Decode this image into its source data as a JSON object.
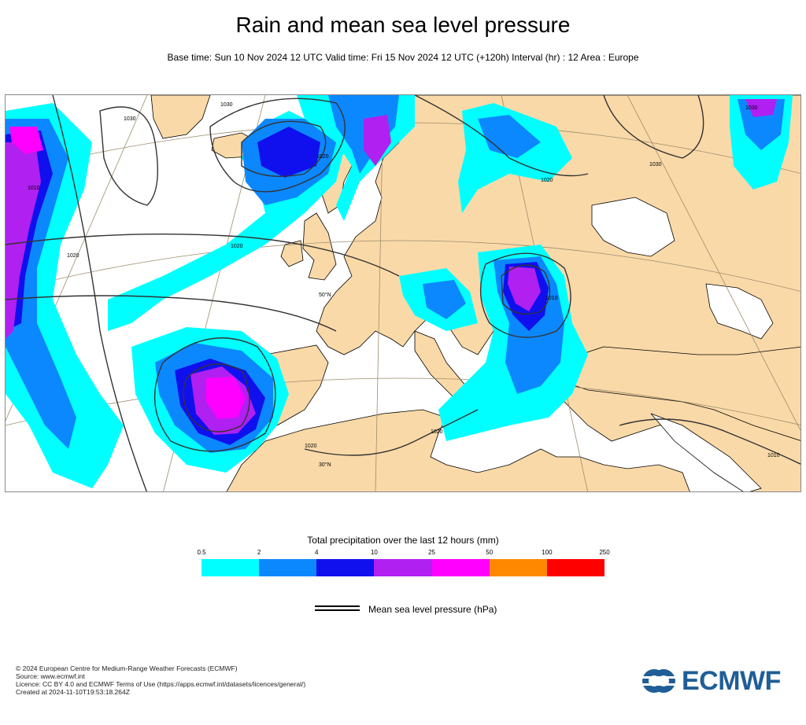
{
  "title": "Rain and mean sea level pressure",
  "subtitle": "Base time: Sun 10 Nov 2024 12 UTC Valid time: Fri 15 Nov 2024 12 UTC (+120h) Interval (hr) : 12 Area : Europe",
  "colorbar": {
    "title": "Total precipitation over the last 12 hours (mm)",
    "ticks": [
      "0.5",
      "2",
      "4",
      "10",
      "25",
      "50",
      "100",
      "250"
    ],
    "colors": [
      "#00ffff",
      "#0c88ff",
      "#1010ee",
      "#b020f0",
      "#ff00ff",
      "#ff8800",
      "#ff0000"
    ]
  },
  "legend": {
    "label": "Mean sea level pressure (hPa)"
  },
  "map": {
    "colors": {
      "land": "#fad9a8",
      "sea": "#ffffff",
      "coast": "#000000",
      "isobar": "#333333",
      "graticule": "#9c8c6c",
      "precip_light": "#00ffff",
      "precip_moderate": "#0c88ff",
      "precip_heavy": "#1010ee",
      "precip_very_heavy": "#b020f0",
      "precip_extreme": "#ff00ff"
    },
    "isobar_labels": [
      "1030",
      "1030",
      "1030",
      "1020",
      "1020",
      "1020",
      "1020",
      "1010",
      "1010",
      "1020",
      "1020",
      "1030",
      "1010"
    ],
    "graticule_labels": [
      "50°N",
      "30°N"
    ]
  },
  "footer": {
    "lines": [
      "© 2024 European Centre for Medium-Range Weather Forecasts (ECMWF)",
      "Source: www.ecmwf.int",
      "Licence: CC BY 4.0 and ECMWF Terms of Use (https://apps.ecmwf.int/datasets/licences/general/)",
      "Created at 2024-11-10T19:53:18.264Z"
    ]
  },
  "logo": {
    "text": "ECMWF",
    "icon": "ecmwf-logo-icon"
  }
}
